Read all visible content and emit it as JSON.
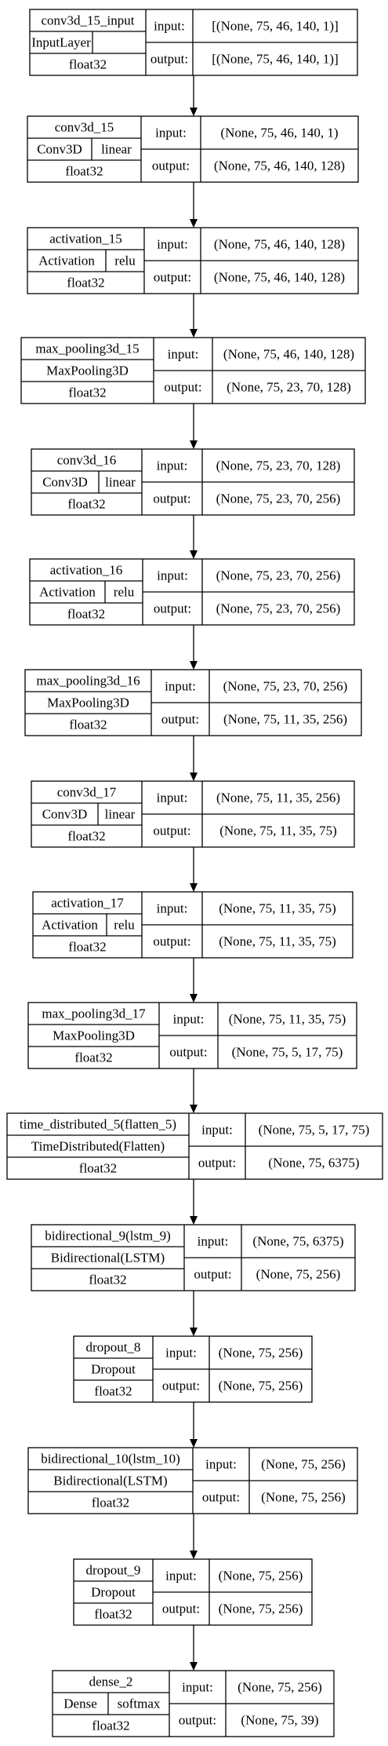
{
  "layers": [
    {
      "name": "conv3d_15_input",
      "type": "InputLayer",
      "activation": "",
      "dtype": "float32",
      "input_label": "input:",
      "input": "[(None, 75, 46, 140, 1)]",
      "output_label": "output:",
      "output": "[(None, 75, 46, 140, 1)]"
    },
    {
      "name": "conv3d_15",
      "type": "Conv3D",
      "activation": "linear",
      "dtype": "float32",
      "input_label": "input:",
      "input": "(None, 75, 46, 140, 1)",
      "output_label": "output:",
      "output": "(None, 75, 46, 140, 128)"
    },
    {
      "name": "activation_15",
      "type": "Activation",
      "activation": "relu",
      "dtype": "float32",
      "input_label": "input:",
      "input": "(None, 75, 46, 140, 128)",
      "output_label": "output:",
      "output": "(None, 75, 46, 140, 128)"
    },
    {
      "name": "max_pooling3d_15",
      "type": "MaxPooling3D",
      "activation": "",
      "dtype": "float32",
      "input_label": "input:",
      "input": "(None, 75, 46, 140, 128)",
      "output_label": "output:",
      "output": "(None, 75, 23, 70, 128)"
    },
    {
      "name": "conv3d_16",
      "type": "Conv3D",
      "activation": "linear",
      "dtype": "float32",
      "input_label": "input:",
      "input": "(None, 75, 23, 70, 128)",
      "output_label": "output:",
      "output": "(None, 75, 23, 70, 256)"
    },
    {
      "name": "activation_16",
      "type": "Activation",
      "activation": "relu",
      "dtype": "float32",
      "input_label": "input:",
      "input": "(None, 75, 23, 70, 256)",
      "output_label": "output:",
      "output": "(None, 75, 23, 70, 256)"
    },
    {
      "name": "max_pooling3d_16",
      "type": "MaxPooling3D",
      "activation": "",
      "dtype": "float32",
      "input_label": "input:",
      "input": "(None, 75, 23, 70, 256)",
      "output_label": "output:",
      "output": "(None, 75, 11, 35, 256)"
    },
    {
      "name": "conv3d_17",
      "type": "Conv3D",
      "activation": "linear",
      "dtype": "float32",
      "input_label": "input:",
      "input": "(None, 75, 11, 35, 256)",
      "output_label": "output:",
      "output": "(None, 75, 11, 35, 75)"
    },
    {
      "name": "activation_17",
      "type": "Activation",
      "activation": "relu",
      "dtype": "float32",
      "input_label": "input:",
      "input": "(None, 75, 11, 35, 75)",
      "output_label": "output:",
      "output": "(None, 75, 11, 35, 75)"
    },
    {
      "name": "max_pooling3d_17",
      "type": "MaxPooling3D",
      "activation": "",
      "dtype": "float32",
      "input_label": "input:",
      "input": "(None, 75, 11, 35, 75)",
      "output_label": "output:",
      "output": "(None, 75, 5, 17, 75)"
    },
    {
      "name": "time_distributed_5(flatten_5)",
      "type": "TimeDistributed(Flatten)",
      "activation": "",
      "dtype": "float32",
      "input_label": "input:",
      "input": "(None, 75, 5, 17, 75)",
      "output_label": "output:",
      "output": "(None, 75, 6375)"
    },
    {
      "name": "bidirectional_9(lstm_9)",
      "type": "Bidirectional(LSTM)",
      "activation": "",
      "dtype": "float32",
      "input_label": "input:",
      "input": "(None, 75, 6375)",
      "output_label": "output:",
      "output": "(None, 75, 256)"
    },
    {
      "name": "dropout_8",
      "type": "Dropout",
      "activation": "",
      "dtype": "float32",
      "input_label": "input:",
      "input": "(None, 75, 256)",
      "output_label": "output:",
      "output": "(None, 75, 256)"
    },
    {
      "name": "bidirectional_10(lstm_10)",
      "type": "Bidirectional(LSTM)",
      "activation": "",
      "dtype": "float32",
      "input_label": "input:",
      "input": "(None, 75, 256)",
      "output_label": "output:",
      "output": "(None, 75, 256)"
    },
    {
      "name": "dropout_9",
      "type": "Dropout",
      "activation": "",
      "dtype": "float32",
      "input_label": "input:",
      "input": "(None, 75, 256)",
      "output_label": "output:",
      "output": "(None, 75, 256)"
    },
    {
      "name": "dense_2",
      "type": "Dense",
      "activation": "softmax",
      "dtype": "float32",
      "input_label": "input:",
      "input": "(None, 75, 256)",
      "output_label": "output:",
      "output": "(None, 75, 39)"
    }
  ],
  "colors": {
    "stroke": "#000000",
    "background": "#ffffff",
    "text": "#000000"
  }
}
